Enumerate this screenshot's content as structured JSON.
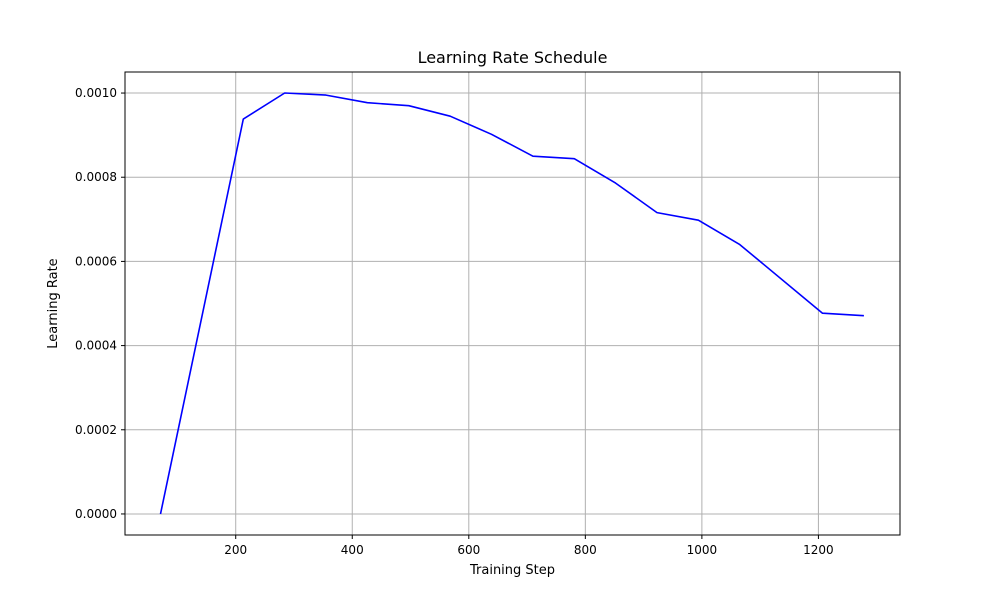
{
  "chart_data": {
    "type": "line",
    "title": "Learning Rate Schedule",
    "xlabel": "Training Step",
    "ylabel": "Learning Rate",
    "xlim": [
      10,
      1340
    ],
    "ylim": [
      -5e-05,
      0.00105
    ],
    "xticks": [
      200,
      400,
      600,
      800,
      1000,
      1200
    ],
    "xtick_labels": [
      "200",
      "400",
      "600",
      "800",
      "1000",
      "1200"
    ],
    "yticks": [
      0.0,
      0.0002,
      0.0004,
      0.0006,
      0.0008,
      0.001
    ],
    "ytick_labels": [
      "0.0000",
      "0.0002",
      "0.0004",
      "0.0006",
      "0.0008",
      "0.0010"
    ],
    "grid": true,
    "line_color": "#0000ff",
    "grid_color": "#b0b0b0",
    "series": [
      {
        "x": [
          71,
          213,
          284,
          355,
          426,
          497,
          568,
          639,
          710,
          781,
          852,
          923,
          994,
          1065,
          1207,
          1278
        ],
        "y": [
          0.0,
          0.000938,
          0.001,
          0.000995,
          0.000977,
          0.00097,
          0.000945,
          0.000902,
          0.00085,
          0.000844,
          0.000786,
          0.000716,
          0.000698,
          0.00064,
          0.000477,
          0.000471
        ]
      }
    ]
  }
}
